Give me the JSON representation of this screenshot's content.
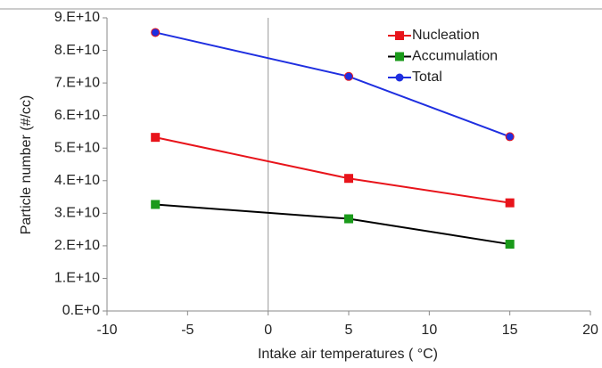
{
  "chart_data": {
    "type": "line",
    "x_label": "Intake air temperatures ( °C)",
    "y_label": "Particle number (#/cc)",
    "x": [
      -7,
      5,
      15
    ],
    "series": [
      {
        "name": "Nucleation",
        "color": "#e8141b",
        "line_color": "#e8141b",
        "marker": "square",
        "values": [
          53300000000.0,
          40700000000.0,
          33200000000.0
        ]
      },
      {
        "name": "Accumulation",
        "color": "#1a9a1a",
        "line_color": "#000000",
        "marker": "square",
        "values": [
          32700000000.0,
          28300000000.0,
          20500000000.0
        ]
      },
      {
        "name": "Total",
        "color": "#1f2fe0",
        "line_color": "#1f2fe0",
        "marker": "circle",
        "values": [
          85500000000.0,
          72000000000.0,
          53500000000.0
        ]
      }
    ],
    "xlim": [
      -10,
      20
    ],
    "xticks": [
      -10,
      -5,
      0,
      5,
      10,
      15,
      20
    ],
    "ylim": [
      0,
      90000000000.0
    ],
    "yticks": [
      {
        "value": 0,
        "label": "0.E+0"
      },
      {
        "value": 10000000000.0,
        "label": "1.E+10"
      },
      {
        "value": 20000000000.0,
        "label": "2.E+10"
      },
      {
        "value": 30000000000.0,
        "label": "3.E+10"
      },
      {
        "value": 40000000000.0,
        "label": "4.E+10"
      },
      {
        "value": 50000000000.0,
        "label": "5.E+10"
      },
      {
        "value": 60000000000.0,
        "label": "6.E+10"
      },
      {
        "value": 70000000000.0,
        "label": "7.E+10"
      },
      {
        "value": 80000000000.0,
        "label": "8.E+10"
      },
      {
        "value": 90000000000.0,
        "label": "9.E+10"
      }
    ],
    "legend": "top-right"
  }
}
